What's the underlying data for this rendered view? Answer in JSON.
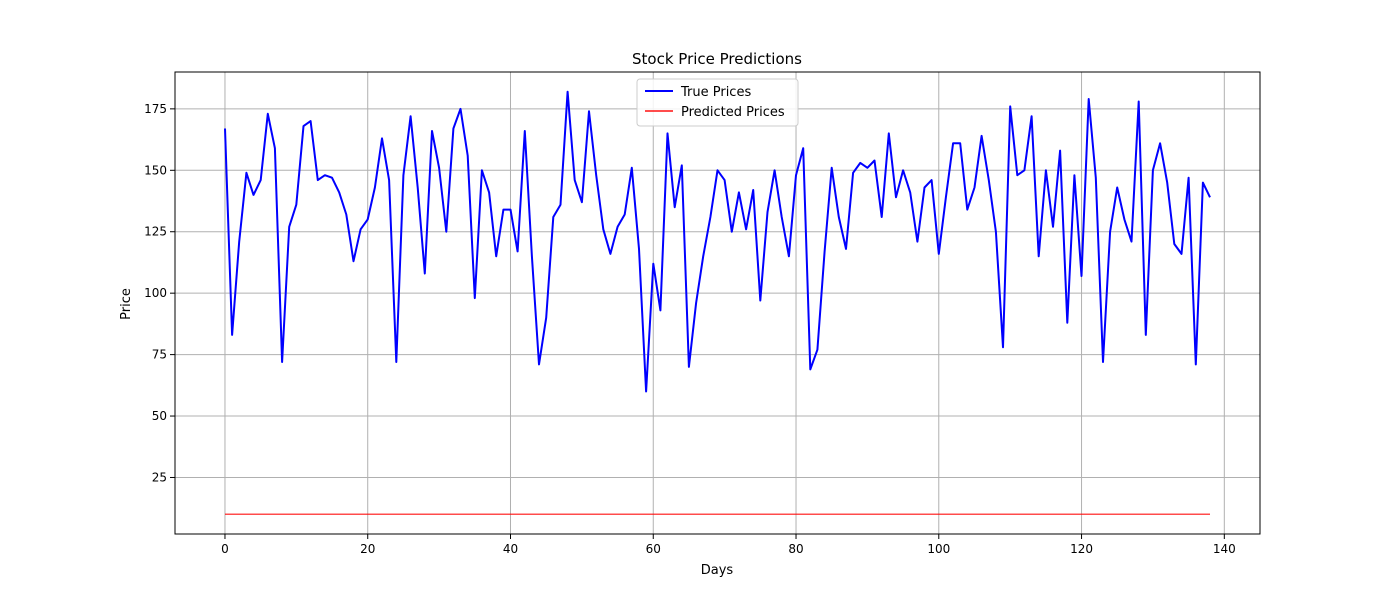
{
  "chart_data": {
    "type": "line",
    "title": "Stock Price Predictions",
    "xlabel": "Days",
    "ylabel": "Price",
    "xlim": [
      -7,
      145
    ],
    "ylim": [
      2,
      190
    ],
    "xticks": [
      0,
      20,
      40,
      60,
      80,
      100,
      120,
      140
    ],
    "yticks": [
      25,
      50,
      75,
      100,
      125,
      150,
      175
    ],
    "grid": true,
    "legend_position": "top-center",
    "series": [
      {
        "name": "True Prices",
        "color": "#0000ff",
        "x": [
          0,
          1,
          2,
          3,
          4,
          5,
          6,
          7,
          8,
          9,
          10,
          11,
          12,
          13,
          14,
          15,
          16,
          17,
          18,
          19,
          20,
          21,
          22,
          23,
          24,
          25,
          26,
          27,
          28,
          29,
          30,
          31,
          32,
          33,
          34,
          35,
          36,
          37,
          38,
          39,
          40,
          41,
          42,
          43,
          44,
          45,
          46,
          47,
          48,
          49,
          50,
          51,
          52,
          53,
          54,
          55,
          56,
          57,
          58,
          59,
          60,
          61,
          62,
          63,
          64,
          65,
          66,
          67,
          68,
          69,
          70,
          71,
          72,
          73,
          74,
          75,
          76,
          77,
          78,
          79,
          80,
          81,
          82,
          83,
          84,
          85,
          86,
          87,
          88,
          89,
          90,
          91,
          92,
          93,
          94,
          95,
          96,
          97,
          98,
          99,
          100,
          101,
          102,
          103,
          104,
          105,
          106,
          107,
          108,
          109,
          110,
          111,
          112,
          113,
          114,
          115,
          116,
          117,
          118,
          119,
          120,
          121,
          122,
          123,
          124,
          125,
          126,
          127,
          128,
          129,
          130,
          131,
          132,
          133,
          134,
          135,
          136,
          137,
          138
        ],
        "values": [
          167,
          83,
          121,
          149,
          140,
          146,
          173,
          159,
          72,
          127,
          136,
          168,
          170,
          146,
          148,
          147,
          141,
          132,
          113,
          126,
          130,
          143,
          163,
          146,
          72,
          148,
          172,
          143,
          108,
          166,
          151,
          125,
          167,
          175,
          156,
          98,
          150,
          141,
          115,
          134,
          134,
          117,
          166,
          115,
          71,
          90,
          131,
          136,
          182,
          146,
          137,
          174,
          148,
          126,
          116,
          127,
          132,
          151,
          118,
          60,
          112,
          93,
          165,
          135,
          152,
          70,
          96,
          115,
          131,
          150,
          146,
          125,
          141,
          126,
          142,
          97,
          133,
          150,
          131,
          115,
          148,
          159,
          69,
          77,
          117,
          151,
          131,
          118,
          149,
          153,
          151,
          154,
          131,
          165,
          139,
          150,
          141,
          121,
          143,
          146,
          116,
          139,
          161,
          161,
          134,
          143,
          164,
          146,
          125,
          78,
          176,
          148,
          150,
          172,
          115,
          150,
          127,
          158,
          88,
          148,
          107,
          179,
          147,
          72,
          125,
          143,
          130,
          121,
          178,
          83,
          150,
          161,
          145,
          120,
          116,
          147,
          71,
          145,
          139
        ]
      },
      {
        "name": "Predicted Prices",
        "color": "#ff0000",
        "x": [
          0,
          138
        ],
        "values": [
          10,
          10
        ]
      }
    ]
  }
}
